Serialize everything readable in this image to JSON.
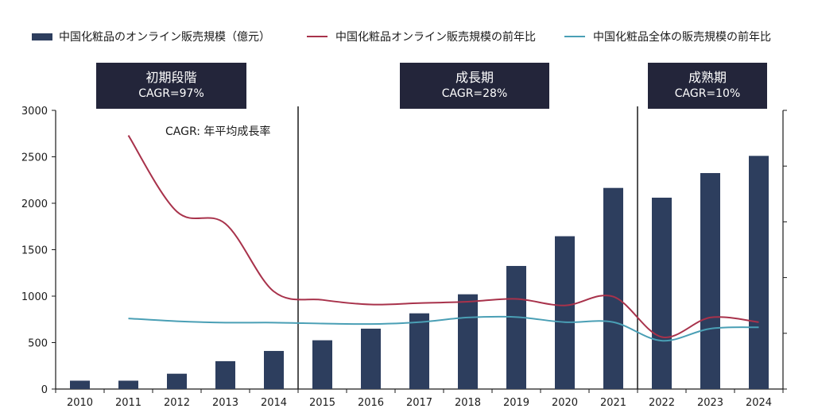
{
  "legend": {
    "bar_label": "中国化粧品のオンライン販売規模（億元）",
    "line1_label": "中国化粧品オンライン販売規模の前年比",
    "line2_label": "中国化粧品全体の販売規模の前年比"
  },
  "phases": [
    {
      "name": "初期段階",
      "cagr": "CAGR=97%"
    },
    {
      "name": "成長期",
      "cagr": "CAGR=28%"
    },
    {
      "name": "成熟期",
      "cagr": "CAGR=10%"
    }
  ],
  "note": "CAGR: 年平均成長率",
  "colors": {
    "bar": "#2d3e5e",
    "line1": "#a8324b",
    "line2": "#4a9fb5",
    "phase_bg": "#23253a",
    "axis": "#1a1a1a"
  },
  "chart_data": {
    "type": "bar",
    "categories": [
      "2010",
      "2011",
      "2012",
      "2013",
      "2014",
      "2015",
      "2016",
      "2017",
      "2018",
      "2019",
      "2020",
      "2021",
      "2022",
      "2023",
      "2024"
    ],
    "series": [
      {
        "name": "中国化粧品のオンライン販売規模（億元）",
        "type": "bar",
        "values": [
          90,
          90,
          165,
          300,
          410,
          525,
          650,
          815,
          1020,
          1325,
          1645,
          2165,
          2060,
          2325,
          2510
        ]
      },
      {
        "name": "中国化粧品オンライン販売規模の前年比",
        "type": "line",
        "values": [
          null,
          2730,
          1910,
          1780,
          1050,
          960,
          910,
          925,
          940,
          970,
          900,
          995,
          560,
          770,
          720
        ]
      },
      {
        "name": "中国化粧品全体の販売規模の前年比",
        "type": "line",
        "values": [
          null,
          760,
          730,
          715,
          715,
          705,
          700,
          720,
          770,
          775,
          720,
          720,
          520,
          650,
          665
        ]
      }
    ],
    "ylim": [
      0,
      3000
    ],
    "yticks": [
      0,
      500,
      1000,
      1500,
      2000,
      2500,
      3000
    ],
    "phase_dividers_after": [
      "2014",
      "2021"
    ],
    "right_axis": "unlabeled"
  }
}
